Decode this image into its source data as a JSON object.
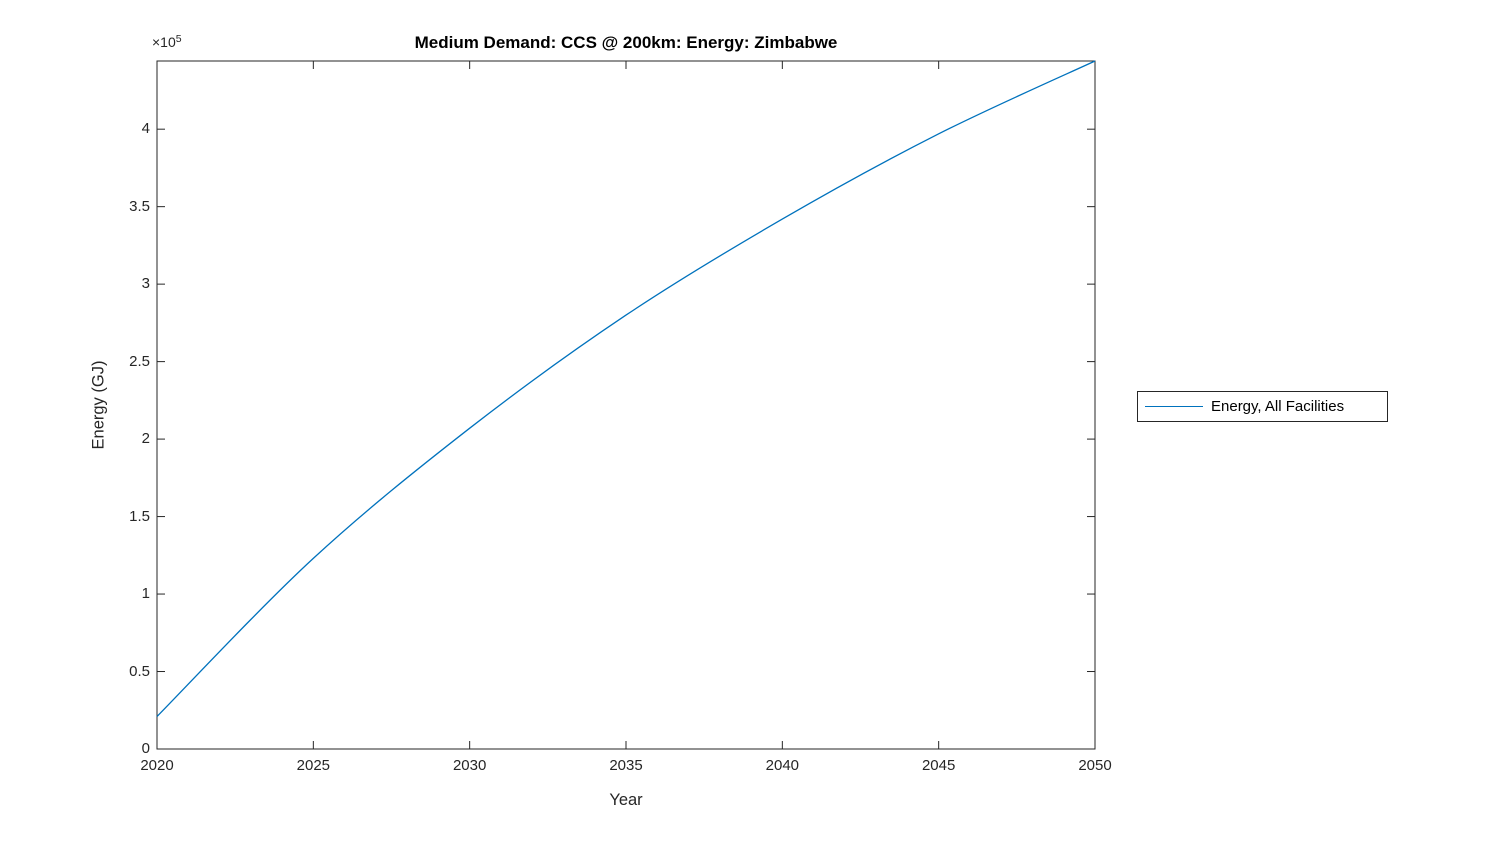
{
  "colors": {
    "line": "#0072BD",
    "axis": "#262626",
    "title": "#000000",
    "background": "#ffffff"
  },
  "chart_data": {
    "type": "line",
    "title": "Medium Demand: CCS @ 200km: Energy: Zimbabwe",
    "xlabel": "Year",
    "ylabel": "Energy (GJ)",
    "y_offset": {
      "base": "×10",
      "exponent": "5"
    },
    "grid": false,
    "xlim": [
      2020,
      2050
    ],
    "ylim": [
      0,
      444000
    ],
    "xticks": [
      2020,
      2025,
      2030,
      2035,
      2040,
      2045,
      2050
    ],
    "xtick_labels": [
      "2020",
      "2025",
      "2030",
      "2035",
      "2040",
      "2045",
      "2050"
    ],
    "yticks": [
      0,
      50000,
      100000,
      150000,
      200000,
      250000,
      300000,
      350000,
      400000
    ],
    "ytick_labels": [
      "0",
      "0.5",
      "1",
      "1.5",
      "2",
      "2.5",
      "3",
      "3.5",
      "4"
    ],
    "legend": {
      "position": "right-outside",
      "entries": [
        {
          "label": "Energy, All Facilities",
          "color": "#0072BD"
        }
      ]
    },
    "series": [
      {
        "name": "Energy, All Facilities",
        "color": "#0072BD",
        "x": [
          2020,
          2025,
          2030,
          2035,
          2040,
          2045,
          2050
        ],
        "y": [
          21000,
          123000,
          207000,
          280000,
          342000,
          397000,
          444000
        ]
      }
    ]
  }
}
